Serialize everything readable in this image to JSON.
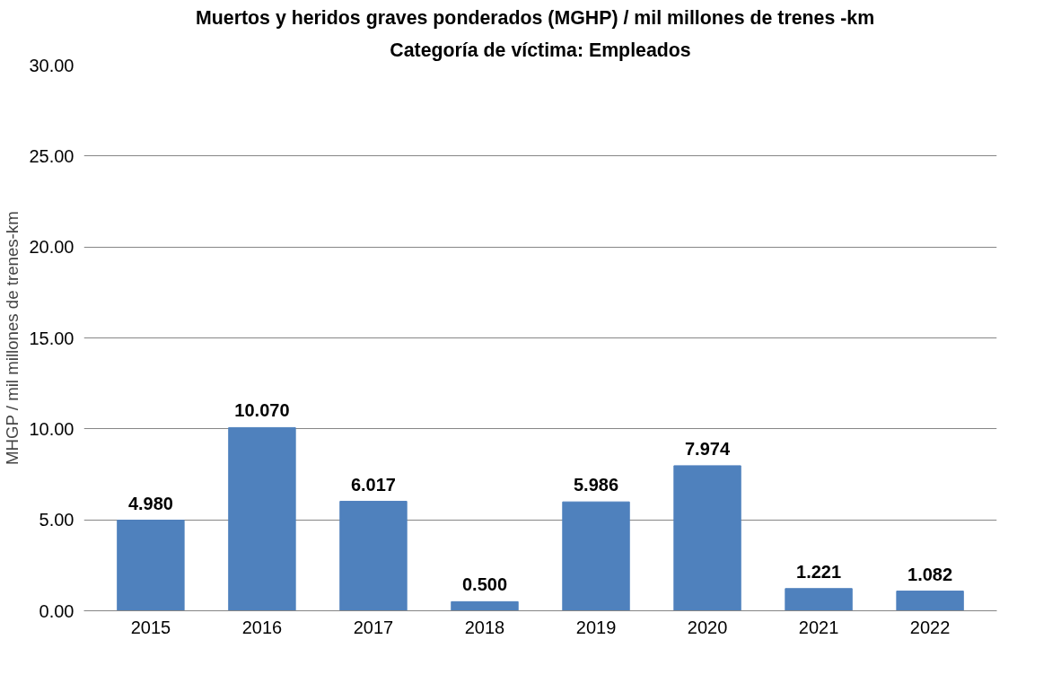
{
  "chart_data": {
    "type": "bar",
    "title": "Muertos y heridos graves ponderados (MGHP) / mil millones de trenes   -km",
    "subtitle": "Categoría de víctima: Empleados",
    "ylabel": "MHGP / mil millones de trenes-km",
    "categories": [
      "2015",
      "2016",
      "2017",
      "2018",
      "2019",
      "2020",
      "2021",
      "2022"
    ],
    "values": [
      4.98,
      10.07,
      6.017,
      0.5,
      5.986,
      7.974,
      1.221,
      1.082
    ],
    "value_labels": [
      "4.980",
      "10.070",
      "6.017",
      "0.500",
      "5.986",
      "7.974",
      "1.221",
      "1.082"
    ],
    "color": "#4f81bd",
    "ylim": [
      0,
      30
    ],
    "yticks": [
      {
        "value": 0,
        "label": "0.00"
      },
      {
        "value": 5,
        "label": "5.00"
      },
      {
        "value": 10,
        "label": "10.00"
      },
      {
        "value": 15,
        "label": "15.00"
      },
      {
        "value": 20,
        "label": "20.00"
      },
      {
        "value": 25,
        "label": "25.00"
      },
      {
        "value": 30,
        "label": "30.00"
      }
    ],
    "grid": "y"
  }
}
